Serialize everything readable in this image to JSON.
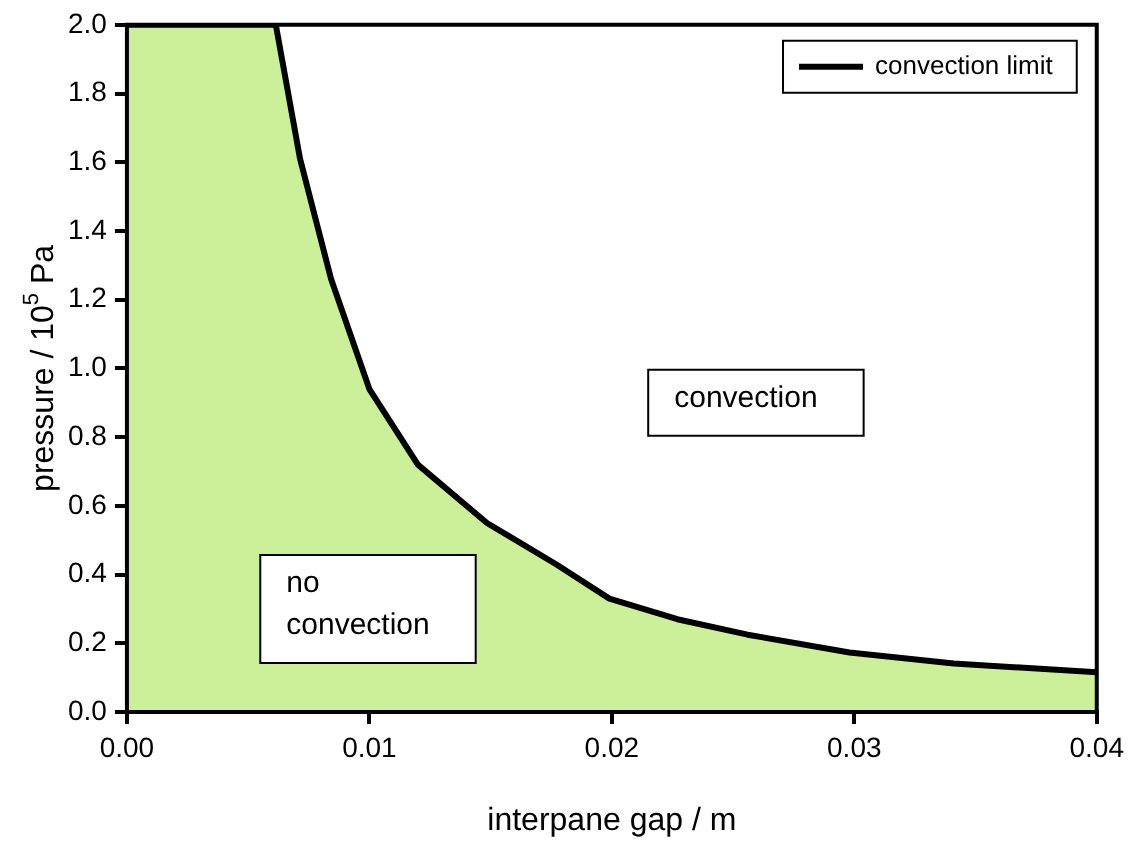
{
  "chart_data": {
    "type": "area",
    "xlabel": "interpane gap / m",
    "ylabel": "pressure / 10$^{5}$ Pa",
    "x": [
      0,
      0.00614,
      0.00714,
      0.00842,
      0.01,
      0.012,
      0.01485,
      0.0177,
      0.0199,
      0.0227,
      0.0256,
      0.0298,
      0.0341,
      0.04
    ],
    "series": [
      {
        "name": "convection limit",
        "color": "#000000",
        "values": [
          2.0,
          2.0,
          1.61,
          1.26,
          0.94,
          0.72,
          0.55,
          0.43,
          0.33,
          0.27,
          0.225,
          0.173,
          0.141,
          0.116
        ]
      }
    ],
    "xlim": [
      0,
      0.04
    ],
    "xticks": [
      {
        "value": 0,
        "label": "0.00"
      },
      0.01,
      0.02,
      0.03,
      0.04
    ],
    "ylim": [
      0,
      2.0
    ],
    "yticks": [
      {
        "value": 0,
        "label": "0.0"
      },
      0.2,
      0.4,
      0.6,
      0.8,
      {
        "value": 1,
        "label": "1.0"
      },
      1.2,
      1.4,
      1.6,
      1.8,
      {
        "value": 2,
        "label": "2.0"
      }
    ],
    "annotations": [
      "convection",
      "no\nconvection"
    ],
    "grid": false,
    "legend": "top right",
    "marker": "none",
    "line_style": "solid"
  }
}
